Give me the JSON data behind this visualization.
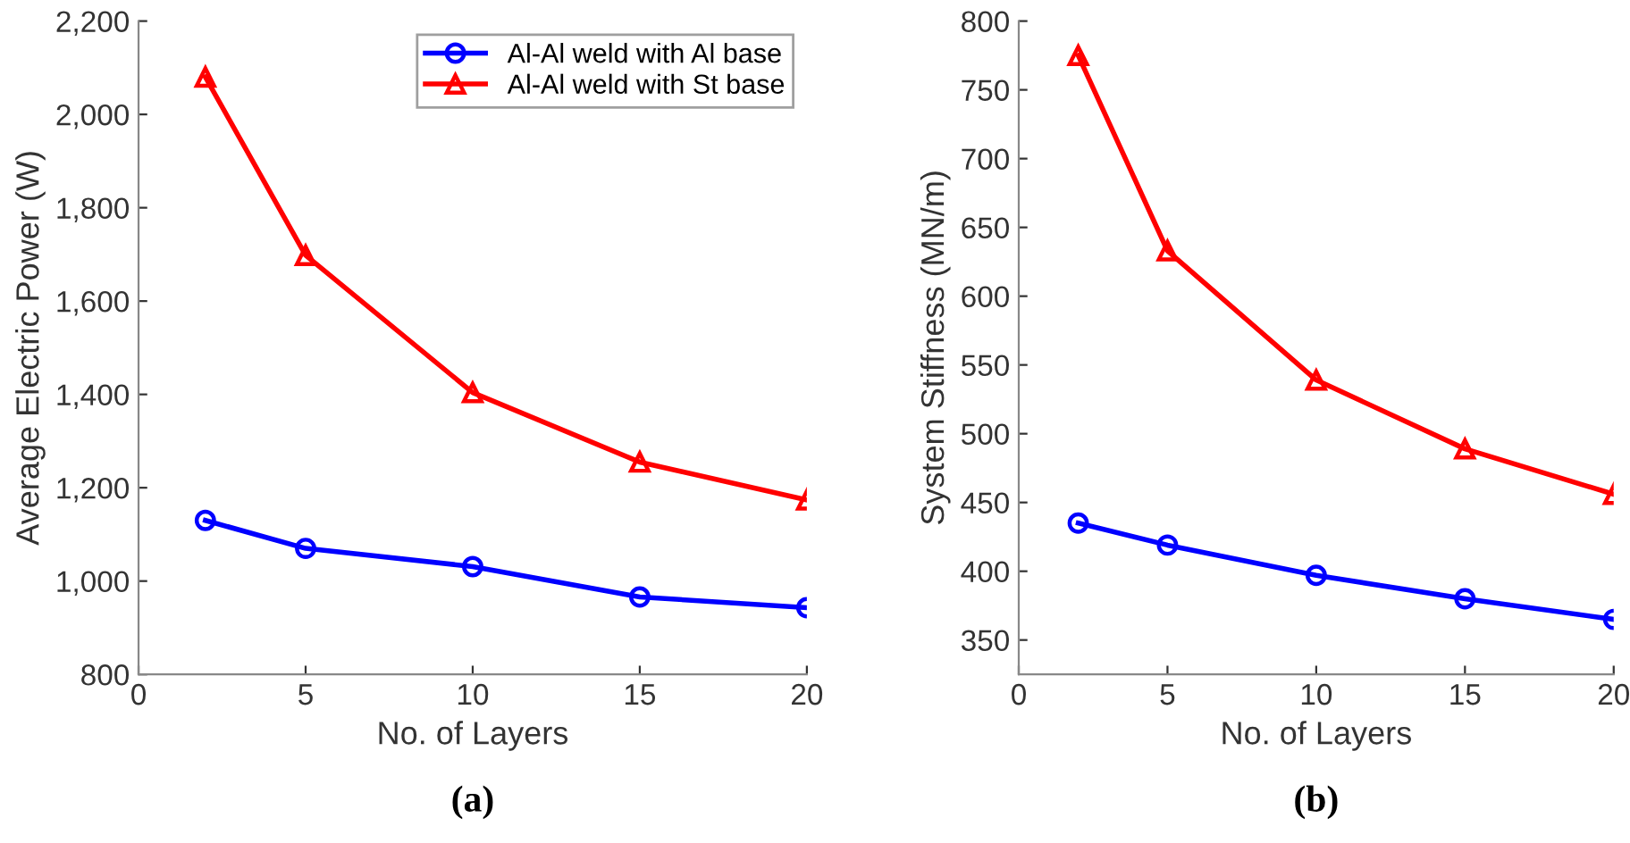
{
  "chart_data": [
    {
      "type": "line",
      "xlabel": "No. of Layers",
      "ylabel": "Average Electric Power (W)",
      "annotations": [
        "(a)"
      ],
      "x": [
        2,
        5,
        10,
        15,
        20
      ],
      "xlim": [
        0,
        20
      ],
      "xticks": [
        0,
        5,
        10,
        15,
        20
      ],
      "ylim": [
        800,
        2200
      ],
      "yticks": [
        {
          "value": 800,
          "label": "800"
        },
        {
          "value": 1000,
          "label": "1,000"
        },
        {
          "value": 1200,
          "label": "1,200"
        },
        {
          "value": 1400,
          "label": "1,400"
        },
        {
          "value": 1600,
          "label": "1,600"
        },
        {
          "value": 1800,
          "label": "1,800"
        },
        {
          "value": 2000,
          "label": "2,000"
        },
        {
          "value": 2200,
          "label": "2,200"
        }
      ],
      "legend": "top right",
      "grid": false,
      "series": [
        {
          "name": "Al-Al weld with Al base",
          "color": "#0000ff",
          "marker": "circle",
          "values": [
            1130,
            1070,
            1031,
            966,
            943
          ]
        },
        {
          "name": "Al-Al weld with St base",
          "color": "#ff0000",
          "marker": "triangle",
          "values": [
            2080,
            1698,
            1404,
            1255,
            1174
          ]
        }
      ]
    },
    {
      "type": "line",
      "xlabel": "No. of Layers",
      "ylabel": "System Stiffness (MN/m)",
      "annotations": [
        "(b)"
      ],
      "x": [
        2,
        5,
        10,
        15,
        20
      ],
      "xlim": [
        0,
        20
      ],
      "xticks": [
        0,
        5,
        10,
        15,
        20
      ],
      "ylim": [
        325,
        800
      ],
      "yticks": [
        350,
        400,
        450,
        500,
        550,
        600,
        650,
        700,
        750,
        800
      ],
      "grid": false,
      "series": [
        {
          "color": "#0000ff",
          "marker": "circle",
          "values": [
            435,
            419,
            397,
            380,
            365
          ]
        },
        {
          "color": "#ff0000",
          "marker": "triangle",
          "values": [
            775,
            633,
            539,
            489,
            456
          ]
        }
      ]
    }
  ]
}
